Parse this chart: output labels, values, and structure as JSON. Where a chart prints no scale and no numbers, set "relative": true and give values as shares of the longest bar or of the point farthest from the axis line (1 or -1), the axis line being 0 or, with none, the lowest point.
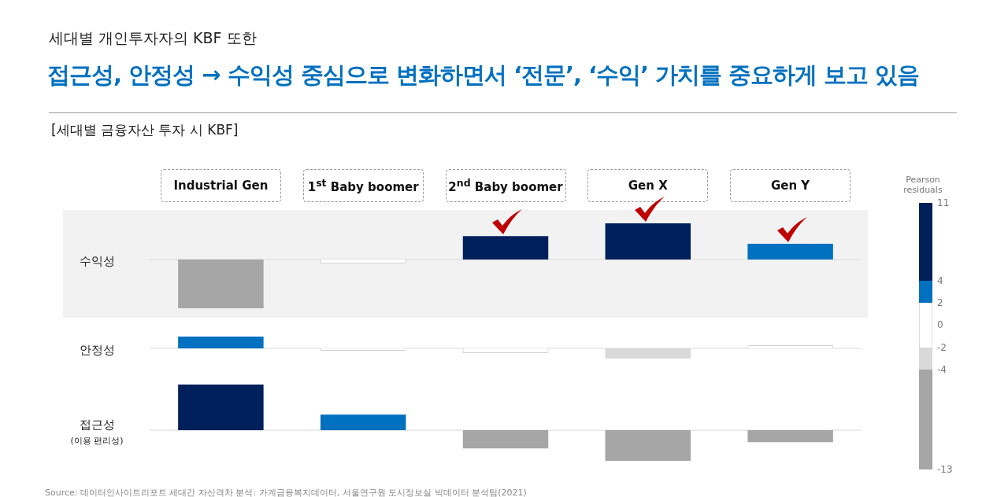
{
  "chart_data": [
    {
      "type": "bar",
      "relative": true,
      "title": "[세대별 금융자산 투자 시 KBF]",
      "annotations": [
        "세대별 개인투자자의 KBF 또한",
        "접근성, 안정성 → 수익성 중심으로 변화하면서 ‘전문’, ‘수익’ 가치를 중요하게 보고 있음",
        "Source: 데이터인사이트리포트 세대간 자산격차 분석: 가계금융복지데이터, 서울연구원 도시정보실 빅데이터 분석팀(2021)"
      ],
      "categories": [
        "Industrial Gen",
        "1$^{st}$ Baby boomer",
        "2$^{nd}$ Baby boomer",
        "Gen X",
        "Gen Y"
      ],
      "ylabel": "수익성",
      "values": [
        -1,
        -0.08,
        0.48,
        0.74,
        0.32
      ],
      "colors": [
        "#a6a6a6",
        "#ffffff",
        "#00205b",
        "#00205b",
        "#0070c0"
      ],
      "clabel": "Pearson residuals",
      "clim": [
        -13,
        11
      ],
      "cticks": [
        11,
        4,
        2,
        0,
        -2,
        -4,
        -13
      ]
    },
    {
      "type": "bar",
      "relative": true,
      "categories": [
        null,
        null,
        null,
        null,
        null
      ],
      "ylabel": "안정성",
      "values": [
        1,
        -0.2,
        -0.4,
        -0.87,
        0.27
      ],
      "colors": [
        "#0070c0",
        "#ffffff",
        "#ffffff",
        "#d9d9d9",
        "#ffffff"
      ]
    },
    {
      "type": "bar",
      "relative": true,
      "categories": [
        null,
        null,
        null,
        null,
        null
      ],
      "ylabel": "접근성\n(이용 편리성)",
      "values": [
        1,
        0.34,
        -0.4,
        -0.67,
        -0.26
      ],
      "colors": [
        "#00205b",
        "#0070c0",
        "#a6a6a6",
        "#a6a6a6",
        "#a6a6a6"
      ]
    }
  ]
}
